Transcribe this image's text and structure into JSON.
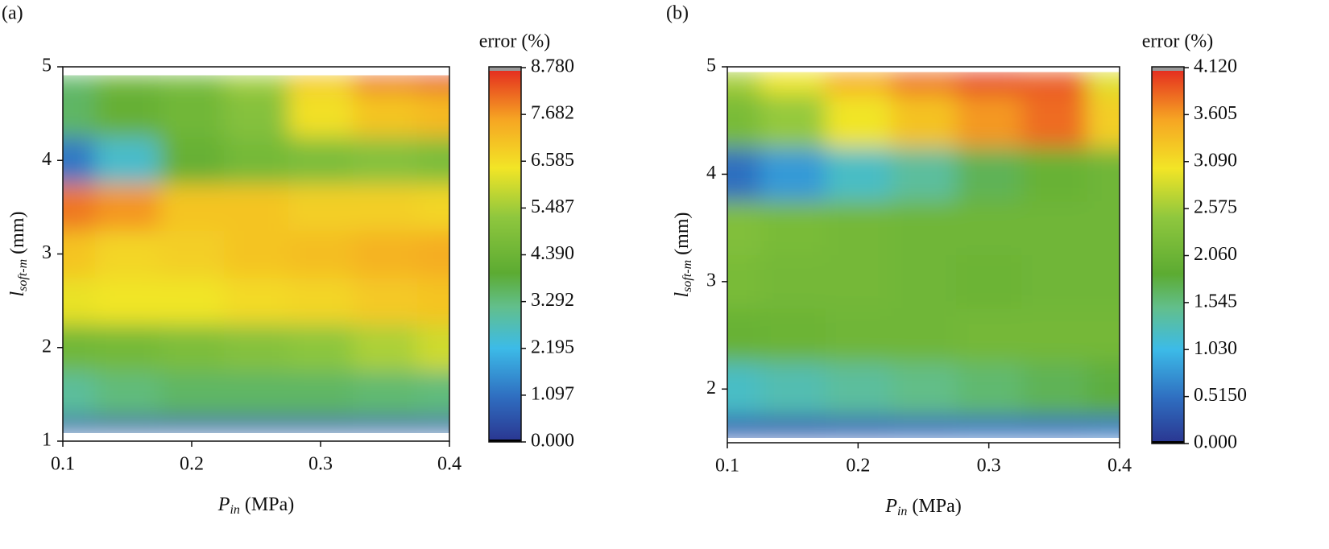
{
  "chart_data": [
    {
      "type": "contour",
      "panel_label": "(a)",
      "xlabel": {
        "symbol": "P",
        "subscript": "in",
        "unit": "(MPa)"
      },
      "ylabel": {
        "symbol": "l",
        "subscript": "soft-m",
        "unit": "(mm)"
      },
      "colorbar_title": "error (%)",
      "x": [
        0.1,
        0.15,
        0.2,
        0.25,
        0.3,
        0.35,
        0.4
      ],
      "y": [
        1,
        1.5,
        2,
        2.5,
        3,
        3.5,
        4,
        4.5,
        5
      ],
      "z": [
        [
          0.5,
          0.5,
          0.6,
          0.6,
          0.6,
          0.6,
          0.6
        ],
        [
          3.0,
          3.3,
          3.5,
          3.5,
          3.5,
          3.4,
          3.3
        ],
        [
          4.5,
          4.6,
          4.8,
          5.0,
          5.2,
          5.6,
          6.0
        ],
        [
          6.3,
          6.4,
          6.4,
          6.6,
          6.7,
          6.9,
          7.0
        ],
        [
          7.0,
          6.7,
          6.8,
          7.0,
          7.1,
          7.3,
          7.4
        ],
        [
          8.0,
          7.7,
          7.0,
          7.0,
          6.8,
          6.8,
          6.7
        ],
        [
          1.2,
          2.5,
          4.2,
          4.6,
          4.8,
          5.0,
          4.8
        ],
        [
          3.5,
          4.2,
          4.5,
          5.0,
          6.5,
          7.0,
          7.2
        ],
        [
          3.5,
          4.3,
          4.6,
          5.5,
          7.0,
          8.2,
          8.6
        ]
      ],
      "xlim": [
        0.1,
        0.4
      ],
      "xticks": [
        0.1,
        0.2,
        0.3,
        0.4
      ],
      "ylim": [
        1,
        5
      ],
      "yticks": [
        1,
        2,
        3,
        4,
        5
      ],
      "zlim": [
        0,
        8.78
      ],
      "zticks": [
        {
          "value": 0,
          "label": "0.000"
        },
        {
          "value": 1.097,
          "label": "1.097"
        },
        {
          "value": 2.195,
          "label": "2.195"
        },
        {
          "value": 3.292,
          "label": "3.292"
        },
        {
          "value": 4.39,
          "label": "4.390"
        },
        {
          "value": 5.487,
          "label": "5.487"
        },
        {
          "value": 6.585,
          "label": "6.585"
        },
        {
          "value": 7.682,
          "label": "7.682"
        },
        {
          "value": 8.78,
          "label": "8.780"
        }
      ]
    },
    {
      "type": "contour",
      "panel_label": "(b)",
      "xlabel": {
        "symbol": "P",
        "subscript": "in",
        "unit": "(MPa)"
      },
      "ylabel": {
        "symbol": "l",
        "subscript": "soft-m",
        "unit": "(mm)"
      },
      "colorbar_title": "error (%)",
      "x": [
        0.1,
        0.15,
        0.2,
        0.25,
        0.3,
        0.35,
        0.4
      ],
      "y": [
        1.5,
        2,
        2.5,
        3,
        3.5,
        4,
        4.5,
        5
      ],
      "z": [
        [
          0.3,
          0.3,
          0.35,
          0.4,
          0.45,
          0.45,
          0.5
        ],
        [
          1.2,
          1.3,
          1.4,
          1.5,
          1.6,
          1.7,
          1.8
        ],
        [
          2.0,
          2.05,
          2.1,
          2.1,
          2.15,
          2.15,
          2.15
        ],
        [
          2.2,
          2.15,
          2.15,
          2.1,
          2.05,
          2.1,
          2.1
        ],
        [
          2.3,
          2.2,
          2.15,
          2.1,
          2.1,
          2.1,
          2.1
        ],
        [
          0.5,
          0.8,
          1.2,
          1.4,
          1.7,
          2.0,
          2.1
        ],
        [
          2.2,
          2.5,
          3.0,
          3.3,
          3.6,
          3.8,
          3.2
        ],
        [
          2.6,
          3.0,
          3.5,
          3.8,
          4.0,
          3.9,
          2.9
        ]
      ],
      "xlim": [
        0.1,
        0.4
      ],
      "xticks": [
        0.1,
        0.2,
        0.3,
        0.4
      ],
      "ylim": [
        1.5,
        5
      ],
      "yticks": [
        2,
        3,
        4,
        5
      ],
      "zlim": [
        0,
        4.12
      ],
      "zticks": [
        {
          "value": 0,
          "label": "0.000"
        },
        {
          "value": 0.515,
          "label": "0.5150"
        },
        {
          "value": 1.03,
          "label": "1.030"
        },
        {
          "value": 1.545,
          "label": "1.545"
        },
        {
          "value": 2.06,
          "label": "2.060"
        },
        {
          "value": 2.575,
          "label": "2.575"
        },
        {
          "value": 3.09,
          "label": "3.090"
        },
        {
          "value": 3.605,
          "label": "3.605"
        },
        {
          "value": 4.12,
          "label": "4.120"
        }
      ]
    }
  ]
}
